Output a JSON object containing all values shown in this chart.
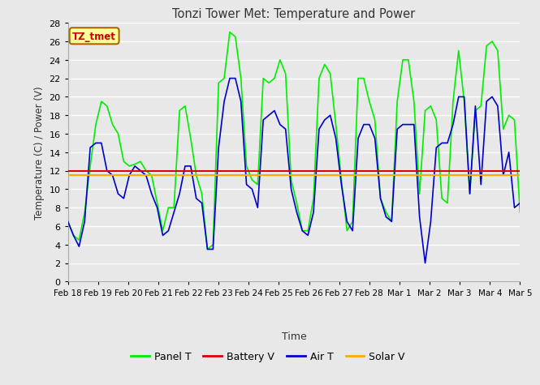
{
  "title": "Tonzi Tower Met: Temperature and Power",
  "xlabel": "Time",
  "ylabel": "Temperature (C) / Power (V)",
  "ylim": [
    0,
    28
  ],
  "yticks": [
    0,
    2,
    4,
    6,
    8,
    10,
    12,
    14,
    16,
    18,
    20,
    22,
    24,
    26,
    28
  ],
  "xtick_labels": [
    "Feb 18",
    "Feb 19",
    "Feb 20",
    "Feb 21",
    "Feb 22",
    "Feb 23",
    "Feb 24",
    "Feb 25",
    "Feb 26",
    "Feb 27",
    "Feb 28",
    "Mar 1",
    "Mar 2",
    "Mar 3",
    "Mar 4",
    "Mar 5"
  ],
  "fig_bg_color": "#e8e8e8",
  "legend_bg_color": "#ffffff",
  "plot_bg_color": "#e8e8e8",
  "grid_color": "#ffffff",
  "panel_T_color": "#00ee00",
  "battery_V_color": "#dd0000",
  "air_T_color": "#0000cc",
  "solar_V_color": "#ffaa00",
  "legend_label_panel": "Panel T",
  "legend_label_battery": "Battery V",
  "legend_label_air": "Air T",
  "legend_label_solar": "Solar V",
  "annotation_text": "TZ_tmet",
  "annotation_color": "#cc0000",
  "annotation_bg": "#ffff99",
  "annotation_border": "#aa6600",
  "panel_T": [
    6.5,
    5.0,
    4.5,
    7.5,
    12.5,
    17.0,
    19.5,
    19.0,
    17.0,
    16.0,
    13.0,
    12.5,
    12.7,
    13.0,
    12.0,
    11.5,
    8.5,
    5.5,
    8.0,
    8.0,
    18.5,
    19.0,
    15.5,
    11.5,
    9.5,
    3.5,
    4.0,
    21.5,
    22.0,
    27.0,
    26.5,
    22.0,
    12.5,
    11.0,
    10.5,
    22.0,
    21.5,
    22.0,
    24.0,
    22.5,
    11.0,
    8.5,
    5.5,
    5.5,
    9.0,
    22.0,
    23.5,
    22.5,
    17.0,
    11.0,
    5.5,
    6.5,
    22.0,
    22.0,
    19.5,
    17.5,
    9.0,
    7.5,
    6.5,
    19.5,
    24.0,
    24.0,
    19.5,
    9.5,
    18.5,
    19.0,
    17.5,
    9.0,
    8.5,
    19.5,
    25.0,
    19.5,
    9.5,
    18.5,
    19.0,
    25.5,
    26.0,
    25.0,
    16.5,
    18.0,
    17.5,
    7.5
  ],
  "air_T": [
    6.5,
    5.0,
    3.8,
    6.5,
    14.5,
    15.0,
    15.0,
    12.0,
    11.5,
    9.5,
    9.0,
    11.5,
    12.5,
    12.0,
    11.5,
    9.5,
    8.0,
    5.0,
    5.5,
    7.5,
    9.5,
    12.5,
    12.5,
    9.0,
    8.5,
    3.5,
    3.5,
    14.5,
    19.5,
    22.0,
    22.0,
    19.5,
    10.5,
    10.0,
    8.0,
    17.5,
    18.0,
    18.5,
    17.0,
    16.5,
    10.0,
    7.5,
    5.5,
    5.0,
    7.5,
    16.5,
    17.5,
    18.0,
    15.5,
    10.5,
    6.5,
    5.5,
    15.5,
    17.0,
    17.0,
    15.5,
    9.0,
    7.0,
    6.5,
    16.5,
    17.0,
    17.0,
    17.0,
    7.0,
    2.0,
    6.5,
    14.5,
    15.0,
    15.0,
    17.0,
    20.0,
    20.0,
    9.5,
    19.0,
    10.5,
    19.5,
    20.0,
    19.0,
    11.5,
    14.0,
    8.0,
    8.5
  ],
  "battery_V": 12.0,
  "solar_V": 11.5
}
